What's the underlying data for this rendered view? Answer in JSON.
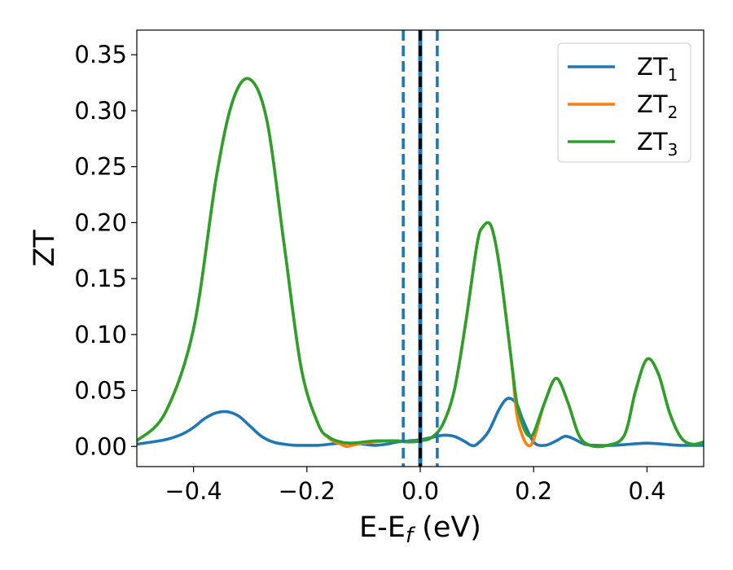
{
  "chart_data": {
    "type": "line",
    "title": "",
    "xlabel": "E-E",
    "xlabel_sub": "f",
    "xlabel_unit": " (eV)",
    "ylabel": "ZT",
    "xlim": [
      -0.5,
      0.5
    ],
    "ylim": [
      -0.018,
      0.372
    ],
    "x_ticks": [
      -0.4,
      -0.2,
      0.0,
      0.2,
      0.4
    ],
    "x_tick_labels": [
      "−0.4",
      "−0.2",
      "0.0",
      "0.2",
      "0.4"
    ],
    "y_ticks": [
      0.0,
      0.05,
      0.1,
      0.15,
      0.2,
      0.25,
      0.3,
      0.35
    ],
    "y_tick_labels": [
      "0.00",
      "0.05",
      "0.10",
      "0.15",
      "0.20",
      "0.25",
      "0.30",
      "0.35"
    ],
    "grid": false,
    "legend_position": "top-right",
    "series": [
      {
        "name": "ZT",
        "name_sub": "1",
        "color": "#1f77b4",
        "x": [
          -0.5,
          -0.45,
          -0.42,
          -0.4,
          -0.38,
          -0.36,
          -0.34,
          -0.32,
          -0.3,
          -0.28,
          -0.26,
          -0.24,
          -0.22,
          -0.2,
          -0.18,
          -0.16,
          -0.14,
          -0.12,
          -0.1,
          -0.08,
          -0.06,
          -0.04,
          -0.02,
          0.0,
          0.02,
          0.04,
          0.06,
          0.08,
          0.09,
          0.1,
          0.12,
          0.14,
          0.155,
          0.17,
          0.18,
          0.2,
          0.22,
          0.24,
          0.255,
          0.27,
          0.29,
          0.31,
          0.34,
          0.37,
          0.4,
          0.43,
          0.46,
          0.5
        ],
        "y": [
          0.002,
          0.006,
          0.011,
          0.017,
          0.025,
          0.03,
          0.031,
          0.027,
          0.018,
          0.009,
          0.004,
          0.002,
          0.001,
          0.001,
          0.001,
          0.002,
          0.003,
          0.003,
          0.002,
          0.001,
          0.002,
          0.004,
          0.005,
          0.006,
          0.008,
          0.01,
          0.009,
          0.004,
          0.001,
          0.002,
          0.013,
          0.034,
          0.043,
          0.038,
          0.025,
          0.004,
          0.001,
          0.005,
          0.009,
          0.007,
          0.002,
          0.001,
          0.001,
          0.002,
          0.003,
          0.002,
          0.001,
          0.001
        ]
      },
      {
        "name": "ZT",
        "name_sub": "2",
        "color": "#ff7f0e",
        "x": [
          -0.5,
          -0.45,
          -0.4,
          -0.36,
          -0.33,
          -0.3,
          -0.27,
          -0.24,
          -0.21,
          -0.18,
          -0.16,
          -0.14,
          -0.13,
          -0.12,
          -0.1,
          -0.08,
          -0.06,
          -0.04,
          -0.02,
          0.0,
          0.02,
          0.04,
          0.06,
          0.08,
          0.1,
          0.11,
          0.125,
          0.14,
          0.16,
          0.17,
          0.18,
          0.19,
          0.2,
          0.22,
          0.24,
          0.26,
          0.28,
          0.3,
          0.33,
          0.36,
          0.38,
          0.4,
          0.42,
          0.44,
          0.46,
          0.48,
          0.5
        ],
        "y": [
          0.005,
          0.03,
          0.105,
          0.24,
          0.31,
          0.328,
          0.29,
          0.18,
          0.07,
          0.02,
          0.007,
          0.002,
          0.0,
          0.001,
          0.003,
          0.004,
          0.005,
          0.005,
          0.004,
          0.005,
          0.008,
          0.02,
          0.05,
          0.11,
          0.18,
          0.196,
          0.197,
          0.16,
          0.08,
          0.03,
          0.01,
          0.001,
          0.006,
          0.04,
          0.061,
          0.04,
          0.01,
          0.001,
          0.001,
          0.01,
          0.05,
          0.078,
          0.065,
          0.03,
          0.008,
          0.002,
          0.004
        ]
      },
      {
        "name": "ZT",
        "name_sub": "3",
        "color": "#2ca02c",
        "x": [
          -0.5,
          -0.45,
          -0.4,
          -0.36,
          -0.33,
          -0.3,
          -0.27,
          -0.24,
          -0.21,
          -0.18,
          -0.16,
          -0.14,
          -0.13,
          -0.12,
          -0.1,
          -0.08,
          -0.06,
          -0.04,
          -0.02,
          0.0,
          0.02,
          0.04,
          0.06,
          0.08,
          0.1,
          0.11,
          0.125,
          0.14,
          0.16,
          0.17,
          0.18,
          0.19,
          0.2,
          0.22,
          0.24,
          0.26,
          0.28,
          0.3,
          0.33,
          0.36,
          0.38,
          0.4,
          0.42,
          0.44,
          0.46,
          0.48,
          0.5
        ],
        "y": [
          0.005,
          0.03,
          0.105,
          0.24,
          0.31,
          0.328,
          0.29,
          0.18,
          0.07,
          0.02,
          0.008,
          0.004,
          0.003,
          0.003,
          0.004,
          0.005,
          0.005,
          0.005,
          0.004,
          0.005,
          0.008,
          0.02,
          0.05,
          0.11,
          0.18,
          0.196,
          0.197,
          0.16,
          0.08,
          0.04,
          0.02,
          0.01,
          0.012,
          0.04,
          0.061,
          0.04,
          0.01,
          0.001,
          0.001,
          0.01,
          0.05,
          0.078,
          0.065,
          0.03,
          0.008,
          0.002,
          0.004
        ]
      }
    ],
    "vertical_lines": [
      {
        "x": -0.03,
        "style": "dashed",
        "color": "#1f77b4"
      },
      {
        "x": 0.03,
        "style": "dashed",
        "color": "#1f77b4"
      },
      {
        "x": 0.0,
        "style": "solid",
        "color": "#1f77b4"
      },
      {
        "x": 0.0,
        "style": "dashed",
        "color": "#000000"
      }
    ]
  }
}
